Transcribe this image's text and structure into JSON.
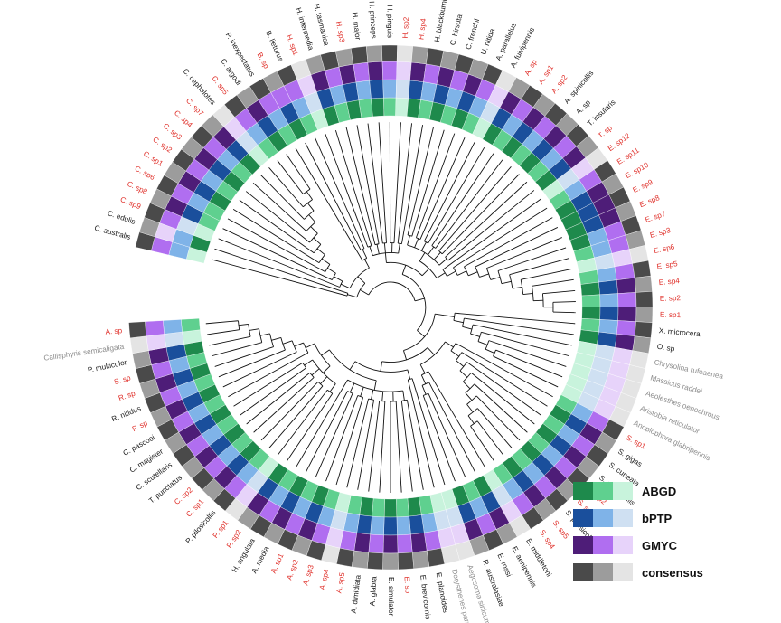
{
  "figure": {
    "title": "Circular phylogenetic tree with species delimitation rings",
    "colors": {
      "label_black": "#1a1a1a",
      "label_red": "#e0322c",
      "label_gray": "#8c8c8c",
      "branch": "#111111",
      "background": "#ffffff"
    },
    "rings": [
      {
        "name": "ABGD",
        "shades": [
          "#1e8a4c",
          "#5fd08f",
          "#c8f3dc"
        ]
      },
      {
        "name": "bPTP",
        "shades": [
          "#1a4f9c",
          "#7fb3e8",
          "#cfe0f2"
        ]
      },
      {
        "name": "GMYC",
        "shades": [
          "#4e1d78",
          "#b06ef0",
          "#e7d3fa"
        ]
      },
      {
        "name": "consensus",
        "shades": [
          "#4a4a4a",
          "#9c9c9c",
          "#e4e4e4"
        ]
      }
    ]
  },
  "legend": [
    {
      "label": "ABGD",
      "colors": [
        "#1e8a4c",
        "#5fd08f",
        "#c8f3dc"
      ]
    },
    {
      "label": "bPTP",
      "colors": [
        "#1a4f9c",
        "#7fb3e8",
        "#cfe0f2"
      ]
    },
    {
      "label": "GMYC",
      "colors": [
        "#4e1d78",
        "#b06ef0",
        "#e7d3fa"
      ]
    },
    {
      "label": "consensus",
      "colors": [
        "#4a4a4a",
        "#9c9c9c",
        "#e4e4e4"
      ]
    }
  ],
  "tips": [
    {
      "label": "C. australis",
      "color": "black"
    },
    {
      "label": "C. edulis",
      "color": "black"
    },
    {
      "label": "C. sp9",
      "color": "red"
    },
    {
      "label": "C. sp8",
      "color": "red"
    },
    {
      "label": "C. sp6",
      "color": "red"
    },
    {
      "label": "C. sp1",
      "color": "red"
    },
    {
      "label": "C. sp2",
      "color": "red"
    },
    {
      "label": "C. sp3",
      "color": "red"
    },
    {
      "label": "C. sp4",
      "color": "red"
    },
    {
      "label": "C. sp7",
      "color": "red"
    },
    {
      "label": "C. cephalotes",
      "color": "black"
    },
    {
      "label": "C. sp5",
      "color": "red"
    },
    {
      "label": "C. argodi",
      "color": "black"
    },
    {
      "label": "P. inexpectatus",
      "color": "black"
    },
    {
      "label": "B. sp",
      "color": "red"
    },
    {
      "label": "B. lieturus",
      "color": "black"
    },
    {
      "label": "H. sp1",
      "color": "red"
    },
    {
      "label": "H. intermedia",
      "color": "black"
    },
    {
      "label": "H. tasmanica",
      "color": "black"
    },
    {
      "label": "H. sp3",
      "color": "red"
    },
    {
      "label": "H. major",
      "color": "black"
    },
    {
      "label": "H. princeps",
      "color": "black"
    },
    {
      "label": "H. pinguis",
      "color": "black"
    },
    {
      "label": "H. sp2",
      "color": "red"
    },
    {
      "label": "H. sp4",
      "color": "red"
    },
    {
      "label": "H. blackburni",
      "color": "black"
    },
    {
      "label": "C. hirsuta",
      "color": "black"
    },
    {
      "label": "C. frenchi",
      "color": "black"
    },
    {
      "label": "U. nitida",
      "color": "black"
    },
    {
      "label": "A. parallelus",
      "color": "black"
    },
    {
      "label": "A. fulvipennis",
      "color": "black"
    },
    {
      "label": "A. sp",
      "color": "red"
    },
    {
      "label": "A. sp1",
      "color": "red"
    },
    {
      "label": "A. sp2",
      "color": "red"
    },
    {
      "label": "A. spinicollis",
      "color": "black"
    },
    {
      "label": "A. sp",
      "color": "black"
    },
    {
      "label": "T. insularis",
      "color": "black"
    },
    {
      "label": "T. sp",
      "color": "red"
    },
    {
      "label": "E. sp12",
      "color": "red"
    },
    {
      "label": "E. sp11",
      "color": "red"
    },
    {
      "label": "E. sp10",
      "color": "red"
    },
    {
      "label": "E. sp9",
      "color": "red"
    },
    {
      "label": "E. sp8",
      "color": "red"
    },
    {
      "label": "E. sp7",
      "color": "red"
    },
    {
      "label": "E. sp3",
      "color": "red"
    },
    {
      "label": "E. sp6",
      "color": "red"
    },
    {
      "label": "E. sp5",
      "color": "red"
    },
    {
      "label": "E. sp4",
      "color": "red"
    },
    {
      "label": "E. sp2",
      "color": "red"
    },
    {
      "label": "E. sp1",
      "color": "red"
    },
    {
      "label": "X. microcera",
      "color": "black"
    },
    {
      "label": "O. sp",
      "color": "black"
    },
    {
      "label": "Chrysolina rufoaenea",
      "color": "gray"
    },
    {
      "label": "Massicus raddei",
      "color": "gray"
    },
    {
      "label": "Aeolesthes oenochrous",
      "color": "gray"
    },
    {
      "label": "Aristobia reticulator",
      "color": "gray"
    },
    {
      "label": "Anoplophora glabripennis",
      "color": "gray"
    },
    {
      "label": "S. sp1",
      "color": "red"
    },
    {
      "label": "S. gigas",
      "color": "black"
    },
    {
      "label": "S. cuneata",
      "color": "black"
    },
    {
      "label": "S. glabricollis",
      "color": "black"
    },
    {
      "label": "S. sp2",
      "color": "red"
    },
    {
      "label": "S. sp3",
      "color": "red"
    },
    {
      "label": "S. pilosicollis",
      "color": "black"
    },
    {
      "label": "S. sp5",
      "color": "red"
    },
    {
      "label": "S. sp4",
      "color": "red"
    },
    {
      "label": "E. middletoni",
      "color": "black"
    },
    {
      "label": "E. aenipennis",
      "color": "black"
    },
    {
      "label": "E. rossi",
      "color": "black"
    },
    {
      "label": "R. australasiae",
      "color": "black"
    },
    {
      "label": "Aegosoma sinicum",
      "color": "gray"
    },
    {
      "label": "Dorysthenes paradoxus",
      "color": "gray"
    },
    {
      "label": "E. planoides",
      "color": "black"
    },
    {
      "label": "E. brevicornis",
      "color": "black"
    },
    {
      "label": "E. sp",
      "color": "red"
    },
    {
      "label": "E. simulator",
      "color": "black"
    },
    {
      "label": "A. glabra",
      "color": "black"
    },
    {
      "label": "A. dimidiata",
      "color": "black"
    },
    {
      "label": "A. sp5",
      "color": "red"
    },
    {
      "label": "A. sp4",
      "color": "red"
    },
    {
      "label": "A. sp3",
      "color": "red"
    },
    {
      "label": "A. sp2",
      "color": "red"
    },
    {
      "label": "A. sp1",
      "color": "red"
    },
    {
      "label": "A. media",
      "color": "black"
    },
    {
      "label": "H. angulata",
      "color": "black"
    },
    {
      "label": "P. sp2",
      "color": "red"
    },
    {
      "label": "P. sp1",
      "color": "red"
    },
    {
      "label": "P. pilosicollis",
      "color": "black"
    },
    {
      "label": "C. sp1",
      "color": "red"
    },
    {
      "label": "C. sp2",
      "color": "red"
    },
    {
      "label": "T. punctatus",
      "color": "black"
    },
    {
      "label": "C. scutellaris",
      "color": "black"
    },
    {
      "label": "C. magister",
      "color": "black"
    },
    {
      "label": "C. pascoei",
      "color": "black"
    },
    {
      "label": "P. sp",
      "color": "red"
    },
    {
      "label": "R. nitidus",
      "color": "black"
    },
    {
      "label": "R. sp",
      "color": "red"
    },
    {
      "label": "S. sp",
      "color": "red"
    },
    {
      "label": "P. multicolor",
      "color": "black"
    },
    {
      "label": "Callisphyris semicaligata",
      "color": "gray"
    },
    {
      "label": "A. sp",
      "color": "red"
    }
  ],
  "ring_values": {
    "ABGD": [
      2,
      0,
      2,
      1,
      1,
      0,
      1,
      0,
      1,
      0,
      2,
      1,
      0,
      1,
      0,
      1,
      2,
      0,
      1,
      0,
      1,
      0,
      1,
      2,
      0,
      1,
      0,
      1,
      0,
      1,
      2,
      0,
      1,
      0,
      1,
      0,
      1,
      0,
      2,
      1,
      0,
      0,
      0,
      0,
      1,
      2,
      1,
      0,
      1,
      0,
      1,
      0,
      2,
      2,
      2,
      2,
      2,
      1,
      0,
      1,
      0,
      1,
      0,
      1,
      0,
      1,
      2,
      0,
      1,
      0,
      2,
      2,
      1,
      0,
      1,
      0,
      1,
      0,
      1,
      2,
      1,
      0,
      1,
      0,
      1,
      0,
      2,
      1,
      0,
      1,
      0,
      1,
      0,
      1,
      0,
      1,
      0,
      1,
      0,
      2,
      1
    ],
    "bPTP": [
      1,
      1,
      2,
      0,
      1,
      0,
      1,
      0,
      1,
      0,
      2,
      1,
      0,
      1,
      0,
      1,
      2,
      0,
      1,
      0,
      1,
      0,
      1,
      2,
      0,
      1,
      0,
      1,
      0,
      1,
      2,
      0,
      1,
      0,
      1,
      0,
      1,
      0,
      2,
      1,
      0,
      0,
      0,
      1,
      1,
      2,
      1,
      0,
      1,
      0,
      1,
      0,
      2,
      2,
      2,
      2,
      2,
      1,
      0,
      1,
      0,
      1,
      0,
      1,
      0,
      1,
      2,
      0,
      1,
      0,
      2,
      2,
      1,
      0,
      1,
      0,
      1,
      0,
      1,
      2,
      1,
      0,
      1,
      0,
      1,
      0,
      2,
      1,
      0,
      1,
      0,
      1,
      0,
      1,
      0,
      1,
      0,
      1,
      0,
      2,
      1
    ],
    "GMYC": [
      1,
      2,
      1,
      0,
      1,
      0,
      1,
      0,
      1,
      0,
      2,
      1,
      0,
      1,
      1,
      1,
      2,
      0,
      1,
      0,
      1,
      0,
      1,
      2,
      0,
      1,
      0,
      1,
      0,
      1,
      2,
      0,
      1,
      0,
      1,
      0,
      1,
      0,
      2,
      1,
      0,
      0,
      0,
      1,
      1,
      2,
      1,
      0,
      1,
      0,
      1,
      0,
      2,
      2,
      2,
      2,
      2,
      1,
      0,
      1,
      0,
      1,
      0,
      1,
      0,
      1,
      2,
      0,
      1,
      0,
      2,
      2,
      1,
      0,
      1,
      0,
      1,
      0,
      1,
      2,
      1,
      0,
      1,
      0,
      1,
      0,
      2,
      1,
      0,
      1,
      0,
      1,
      0,
      1,
      0,
      1,
      0,
      1,
      0,
      2,
      1
    ],
    "consensus": [
      0,
      1,
      0,
      1,
      0,
      1,
      0,
      1,
      0,
      1,
      2,
      0,
      1,
      0,
      1,
      0,
      2,
      1,
      0,
      1,
      0,
      1,
      0,
      2,
      1,
      0,
      1,
      0,
      1,
      0,
      2,
      1,
      0,
      1,
      0,
      1,
      0,
      1,
      2,
      0,
      1,
      0,
      1,
      0,
      1,
      2,
      0,
      1,
      0,
      1,
      0,
      1,
      2,
      2,
      2,
      2,
      2,
      0,
      1,
      0,
      1,
      0,
      1,
      0,
      1,
      0,
      2,
      1,
      0,
      1,
      2,
      2,
      0,
      1,
      0,
      1,
      0,
      1,
      0,
      2,
      0,
      1,
      0,
      1,
      0,
      1,
      2,
      0,
      1,
      0,
      1,
      0,
      1,
      0,
      1,
      0,
      1,
      0,
      1,
      2,
      0
    ]
  }
}
